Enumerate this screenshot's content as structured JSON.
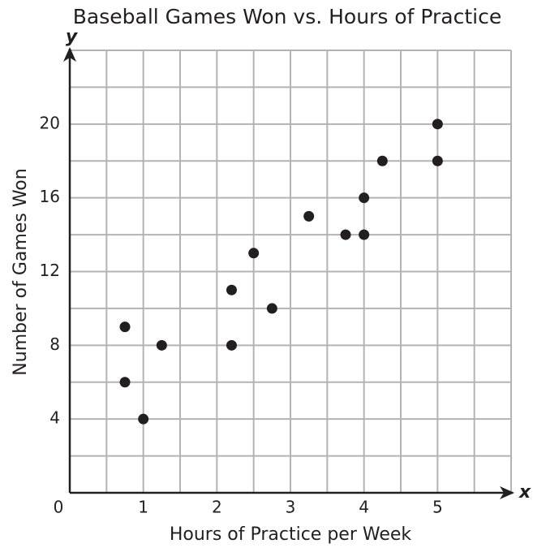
{
  "chart_data": {
    "type": "scatter",
    "title": "Baseball Games Won vs. Hours of Practice",
    "x_label": "Hours of Practice per Week",
    "y_label": "Number of Games Won",
    "x_axis_name": "x",
    "y_axis_name": "y",
    "xlim": [
      0,
      6
    ],
    "ylim": [
      0,
      24
    ],
    "xticks": [
      0,
      1,
      2,
      3,
      4,
      5
    ],
    "yticks": [
      4,
      8,
      12,
      16,
      20
    ],
    "xgrid": [
      0.5,
      1,
      1.5,
      2,
      2.5,
      3,
      3.5,
      4,
      4.5,
      5,
      5.5,
      6
    ],
    "ygrid": [
      2,
      4,
      6,
      8,
      10,
      12,
      14,
      16,
      18,
      20,
      22,
      24
    ],
    "grid": true,
    "color": "#231f20",
    "x": [
      0.75,
      0.75,
      1,
      1.25,
      2.2,
      2.2,
      2.5,
      2.75,
      3.25,
      3.75,
      4,
      4,
      4.25,
      5,
      5
    ],
    "values": [
      9,
      6,
      4,
      8,
      11,
      8,
      13,
      10,
      15,
      14,
      16,
      14,
      18,
      20,
      18
    ]
  }
}
